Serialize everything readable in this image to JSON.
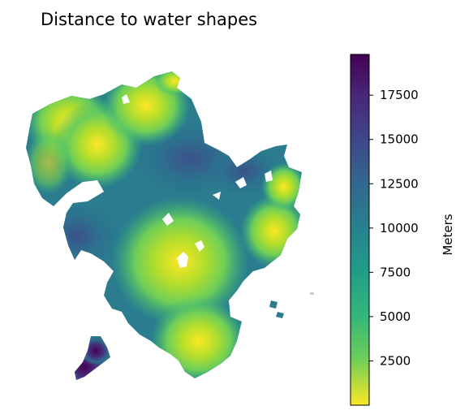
{
  "chart_data": {
    "type": "heatmap",
    "title": "Distance to water shapes",
    "colorbar": {
      "label": "Meters",
      "colormap": "viridis (reversed)",
      "min": 0,
      "max": 19800,
      "ticks": [
        2500,
        5000,
        7500,
        10000,
        12500,
        15000,
        17500
      ],
      "tick_labels": [
        "2500",
        "5000",
        "7500",
        "10000",
        "12500",
        "15000",
        "17500"
      ]
    },
    "axes_visible": false,
    "colors": {
      "low": "#fde725",
      "mid": "#21918c",
      "high": "#440154"
    }
  }
}
